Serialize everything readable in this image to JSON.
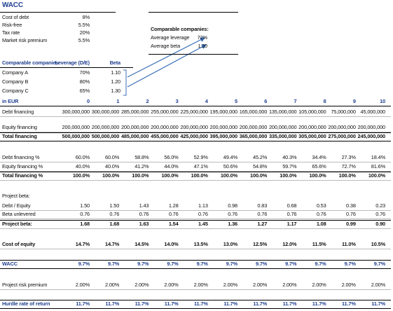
{
  "title": "WACC",
  "inputs": [
    {
      "label": "Cost of debt",
      "value": "8%"
    },
    {
      "label": "Risk-free",
      "value": "5.5%"
    },
    {
      "label": "Tax rate",
      "value": "20%"
    },
    {
      "label": "Market risk premium",
      "value": "5.5%"
    }
  ],
  "comparables_summary": {
    "title": "Comparable companies:",
    "rows": [
      {
        "label": "Average leverage",
        "value": "72%"
      },
      {
        "label": "Average beta",
        "value": "1.20"
      }
    ]
  },
  "comparables_table": {
    "headers": [
      "Comparable companies",
      "Leverage (D/E)",
      "Beta"
    ],
    "rows": [
      [
        "Company A",
        "70%",
        "1.10"
      ],
      [
        "Company B",
        "80%",
        "1.20"
      ],
      [
        "Company C",
        "65%",
        "1.30"
      ]
    ]
  },
  "schedule": {
    "header": {
      "label": "in EUR",
      "years": [
        0,
        1,
        2,
        3,
        4,
        5,
        6,
        7,
        8,
        9,
        10
      ]
    },
    "rows": [
      {
        "label": "Debt financing",
        "values": [
          "300,000,000",
          "300,000,000",
          "285,000,000",
          "255,000,000",
          "225,000,000",
          "195,000,000",
          "165,000,000",
          "135,000,000",
          "105,000,000",
          "75,000,000",
          "45,000,000"
        ]
      },
      {
        "label": "Equity financing",
        "values": [
          "200,000,000",
          "200,000,000",
          "200,000,000",
          "200,000,000",
          "200,000,000",
          "200,000,000",
          "200,000,000",
          "200,000,000",
          "200,000,000",
          "200,000,000",
          "200,000,000"
        ]
      },
      {
        "label": "Total financing",
        "values": [
          "500,000,000",
          "500,000,000",
          "485,000,000",
          "455,000,000",
          "425,000,000",
          "395,000,000",
          "365,000,000",
          "335,000,000",
          "305,000,000",
          "275,000,000",
          "245,000,000"
        ]
      },
      {
        "label": "Debt financing %",
        "values": [
          "60.0%",
          "60.0%",
          "58.8%",
          "56.0%",
          "52.9%",
          "49.4%",
          "45.2%",
          "40.3%",
          "34.4%",
          "27.3%",
          "18.4%"
        ]
      },
      {
        "label": "Equity financing %",
        "values": [
          "40.0%",
          "40.0%",
          "41.2%",
          "44.0%",
          "47.1%",
          "50.6%",
          "54.8%",
          "59.7%",
          "65.6%",
          "72.7%",
          "81.6%"
        ]
      },
      {
        "label": "Total financing %",
        "values": [
          "100.0%",
          "100.0%",
          "100.0%",
          "100.0%",
          "100.0%",
          "100.0%",
          "100.0%",
          "100.0%",
          "100.0%",
          "100.0%",
          "100.0%"
        ]
      },
      {
        "label": "Project beta:"
      },
      {
        "label": "Debt / Equity",
        "values": [
          "1.50",
          "1.50",
          "1.43",
          "1.28",
          "1.13",
          "0.98",
          "0.83",
          "0.68",
          "0.53",
          "0.38",
          "0.23"
        ]
      },
      {
        "label": "Beta unlevered",
        "values": [
          "0.76",
          "0.76",
          "0.76",
          "0.76",
          "0.76",
          "0.76",
          "0.76",
          "0.76",
          "0.76",
          "0.76",
          "0.76"
        ]
      },
      {
        "label": "Project beta:",
        "values": [
          "1.68",
          "1.68",
          "1.63",
          "1.54",
          "1.45",
          "1.36",
          "1.27",
          "1.17",
          "1.08",
          "0.99",
          "0.90"
        ]
      },
      {
        "label": "Cost of equity",
        "values": [
          "14.7%",
          "14.7%",
          "14.5%",
          "14.0%",
          "13.5%",
          "13.0%",
          "12.5%",
          "12.0%",
          "11.5%",
          "11.0%",
          "10.5%"
        ]
      },
      {
        "label": "WACC",
        "values": [
          "9.7%",
          "9.7%",
          "9.7%",
          "9.7%",
          "9.7%",
          "9.7%",
          "9.7%",
          "9.7%",
          "9.7%",
          "9.7%",
          "9.7%"
        ]
      },
      {
        "label": "Project risk premium",
        "values": [
          "2.00%",
          "2.00%",
          "2.00%",
          "2.00%",
          "2.00%",
          "2.00%",
          "2.00%",
          "2.00%",
          "2.00%",
          "2.00%",
          "2.00%"
        ]
      },
      {
        "label": "Hurdle rate of return",
        "values": [
          "11.7%",
          "11.7%",
          "11.7%",
          "11.7%",
          "11.7%",
          "11.7%",
          "11.7%",
          "11.7%",
          "11.7%",
          "11.7%",
          "11.7%"
        ]
      }
    ]
  }
}
